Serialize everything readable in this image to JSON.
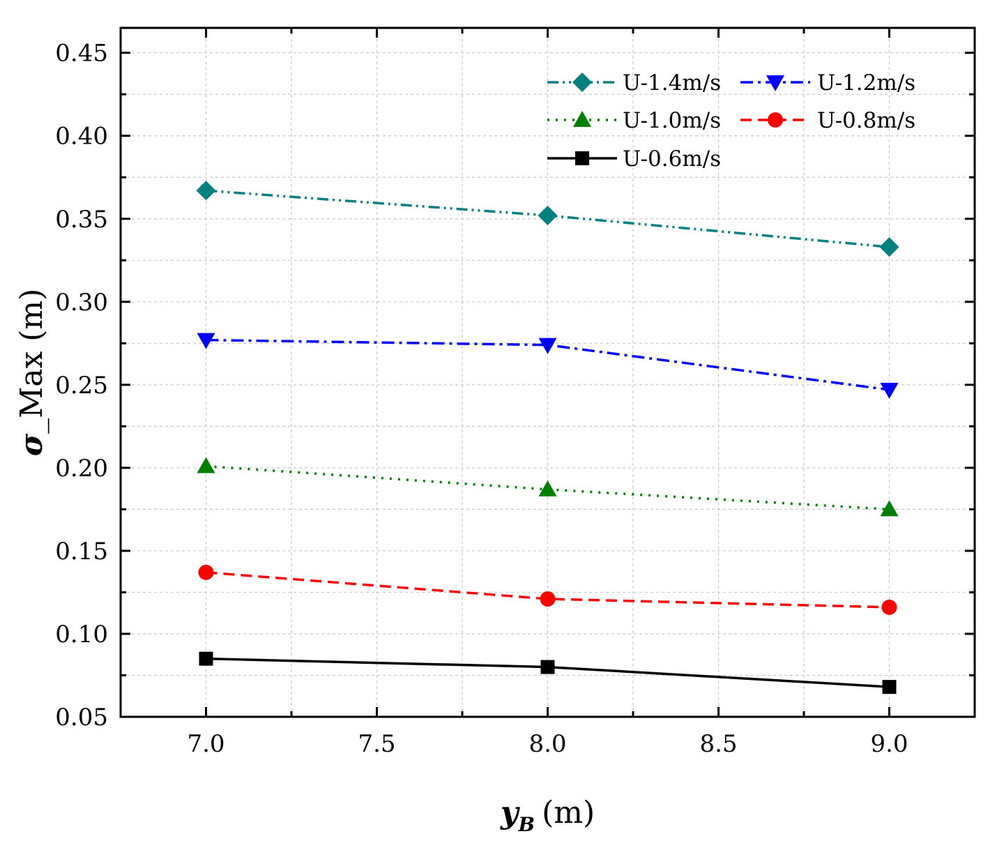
{
  "chart_data": {
    "type": "line",
    "x": [
      7.0,
      8.0,
      9.0
    ],
    "x_ticks": [
      "7.0",
      "7.5",
      "8.0",
      "8.5",
      "9.0"
    ],
    "y_ticks": [
      "0.05",
      "0.10",
      "0.15",
      "0.20",
      "0.25",
      "0.30",
      "0.35",
      "0.40",
      "0.45"
    ],
    "xlim": [
      6.75,
      9.25
    ],
    "ylim": [
      0.05,
      0.465
    ],
    "grid": true,
    "xlabel_main": "y",
    "xlabel_sub": "B",
    "xlabel_unit": "(m)",
    "ylabel_symbol": "σ",
    "ylabel_rest": "_Max (m)",
    "legend_position": "top-right",
    "series": [
      {
        "name": "U-1.4m/s",
        "values": [
          0.367,
          0.352,
          0.333
        ],
        "color": "#008080",
        "marker": "diamond",
        "dash": "dash-dot-dot"
      },
      {
        "name": "U-1.2m/s",
        "values": [
          0.277,
          0.274,
          0.247
        ],
        "color": "#0000ff",
        "marker": "triangle-down",
        "dash": "dash-dot"
      },
      {
        "name": "U-1.0m/s",
        "values": [
          0.201,
          0.187,
          0.175
        ],
        "color": "#008000",
        "marker": "triangle-up",
        "dash": "dot"
      },
      {
        "name": "U-0.8m/s",
        "values": [
          0.137,
          0.121,
          0.116
        ],
        "color": "#ff0000",
        "marker": "circle",
        "dash": "dash"
      },
      {
        "name": "U-0.6m/s",
        "values": [
          0.085,
          0.08,
          0.068
        ],
        "color": "#000000",
        "marker": "square",
        "dash": "solid"
      }
    ]
  }
}
